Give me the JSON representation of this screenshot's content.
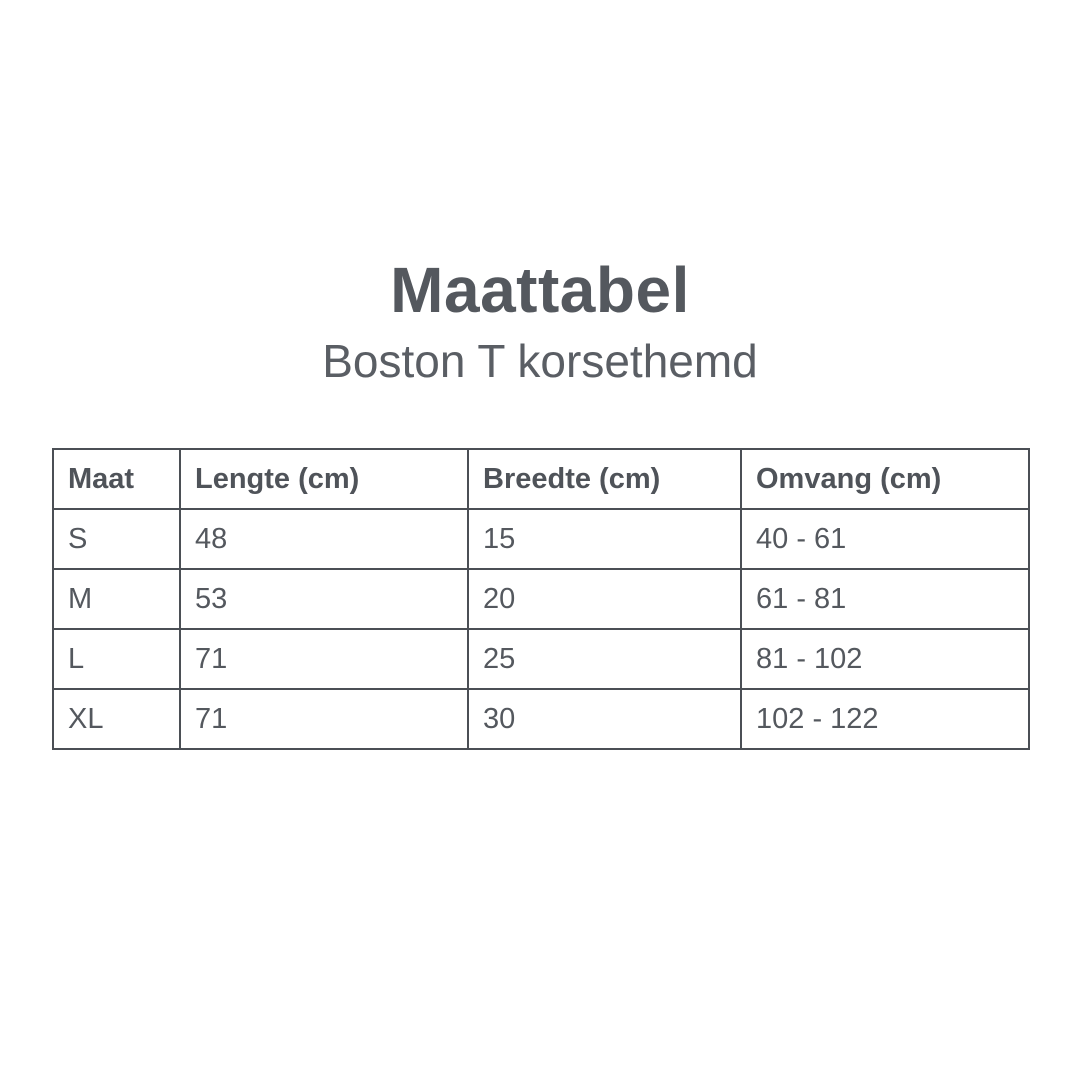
{
  "header": {
    "title": "Maattabel",
    "subtitle": "Boston T korsethemd"
  },
  "colors": {
    "background": "#ffffff",
    "title_text": "#54585e",
    "subtitle_text": "#5a5e64",
    "table_border": "#4b4f55",
    "header_text": "#4f5359",
    "body_text": "#54585e"
  },
  "chart_data": {
    "type": "table",
    "title": "Maattabel",
    "subtitle": "Boston T korsethemd",
    "columns": [
      "Maat",
      "Lengte (cm)",
      "Breedte (cm)",
      "Omvang (cm)"
    ],
    "rows": [
      [
        "S",
        "48",
        "15",
        "40 - 61"
      ],
      [
        "M",
        "53",
        "20",
        "61 - 81"
      ],
      [
        "L",
        "71",
        "25",
        "81 - 102"
      ],
      [
        "XL",
        "71",
        "30",
        "102 - 122"
      ]
    ]
  }
}
